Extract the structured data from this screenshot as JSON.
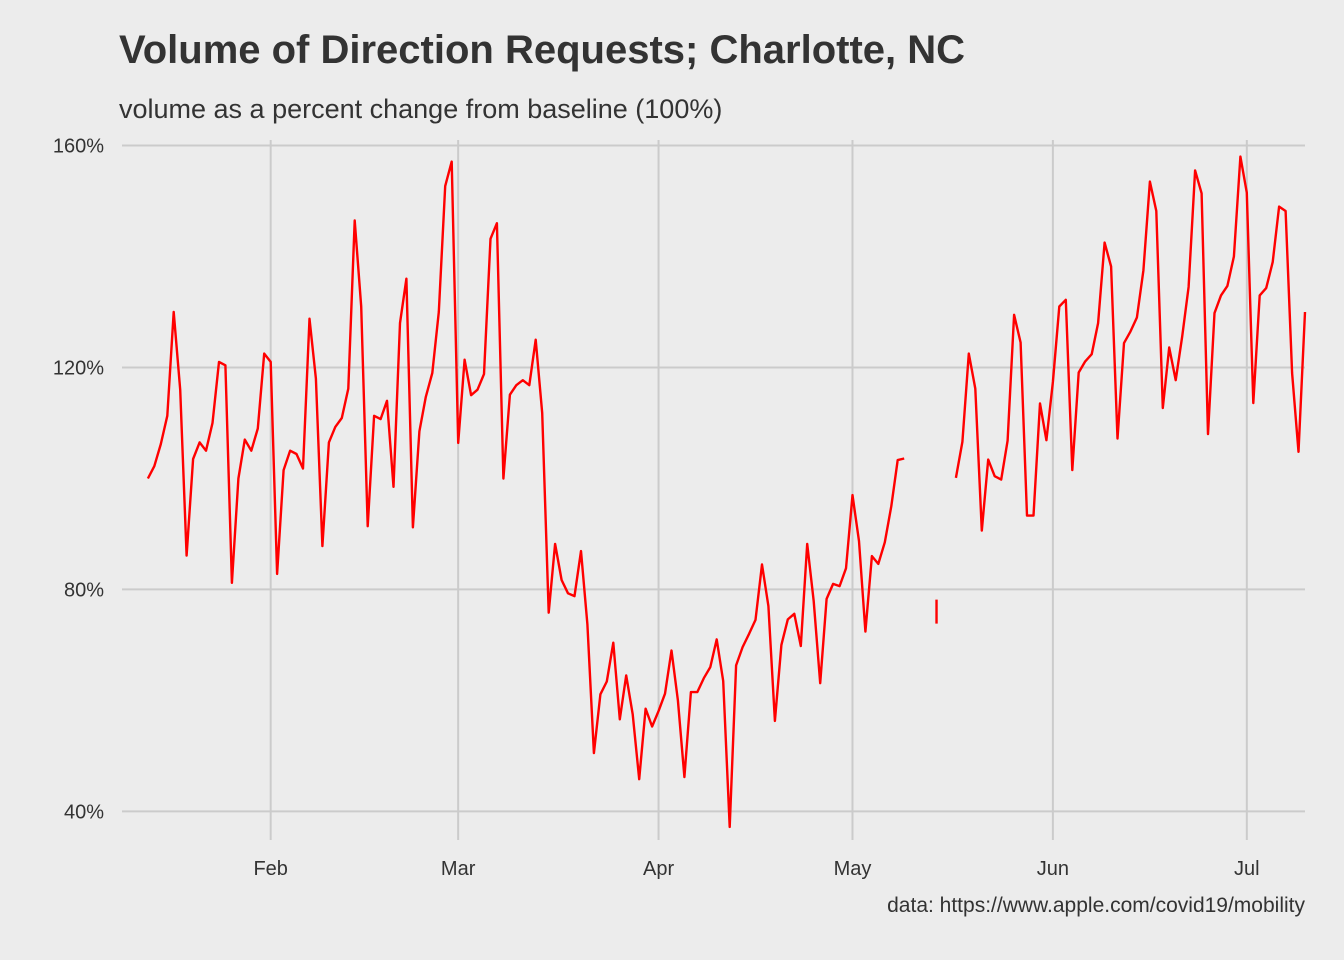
{
  "chart_data": {
    "type": "line",
    "title": "Volume of Direction Requests; Charlotte, NC",
    "subtitle": "volume as a percent change from baseline (100%)",
    "caption": "data: https://www.apple.com/covid19/mobility",
    "xlabel": "",
    "ylabel": "",
    "x_start_date": "2020-01-13",
    "x_tick_labels": [
      "Feb",
      "Mar",
      "Apr",
      "May",
      "Jun",
      "Jul"
    ],
    "x_tick_dates": [
      "2020-02-01",
      "2020-03-01",
      "2020-04-01",
      "2020-05-01",
      "2020-06-01",
      "2020-07-01"
    ],
    "xlim": [
      "2020-01-09",
      "2020-07-10"
    ],
    "y_tick_labels": [
      "40%",
      "80%",
      "120%",
      "160%"
    ],
    "y_tick_values": [
      40,
      80,
      120,
      160
    ],
    "ylim": [
      37,
      161
    ],
    "grid": true,
    "legend": "none",
    "line_color": "#ff0000",
    "series": [
      {
        "values": [
          100.0,
          102.2,
          106.2,
          111.3,
          130.0,
          116.0,
          86.1,
          103.5,
          106.5,
          105.0,
          110.0,
          121.0,
          120.4,
          81.2,
          100.0,
          107.0,
          105.0,
          109.0,
          122.5,
          121.0,
          82.8,
          101.5,
          105.0,
          104.4,
          101.8,
          128.8,
          118.0,
          87.8,
          106.5,
          109.3,
          110.9,
          116.2,
          146.5,
          131.0,
          91.4,
          111.3,
          110.7,
          114.0,
          98.5,
          128.0,
          136.0,
          91.2,
          108.5,
          114.7,
          119.0,
          130.0,
          152.7,
          157.1,
          106.4,
          121.4,
          115.0,
          116.0,
          118.8,
          143.2,
          146.0,
          100.0,
          115.1,
          116.8,
          117.7,
          116.8,
          125.0,
          111.8,
          75.8,
          88.2,
          81.7,
          79.3,
          78.8,
          86.9,
          73.7,
          50.5,
          61.1,
          63.4,
          70.4,
          56.6,
          64.5,
          57.5,
          45.8,
          58.5,
          55.3,
          58.1,
          61.2,
          69.0,
          60.0,
          46.2,
          61.5,
          61.5,
          64.0,
          66.0,
          71.0,
          63.5,
          37.2,
          66.3,
          69.6,
          72.0,
          74.5,
          84.5,
          77.0,
          56.3,
          70.0,
          74.6,
          75.6,
          69.8,
          88.2,
          77.9,
          63.1,
          78.3,
          81.0,
          80.6,
          83.8,
          97.0,
          88.7,
          72.4,
          86.0,
          84.6,
          88.5,
          95.0,
          103.3,
          103.6,
          null,
          null,
          null,
          null,
          76.0,
          null,
          null,
          100.1,
          106.6,
          122.5,
          116.2,
          90.6,
          103.4,
          100.4,
          99.8,
          106.8,
          129.5,
          124.5,
          93.3,
          93.3,
          113.5,
          106.9,
          117.4,
          131.0,
          132.2,
          101.5,
          119.1,
          121.1,
          122.4,
          128.0,
          142.5,
          138.2,
          107.2,
          124.4,
          126.5,
          129.0,
          137.5,
          153.5,
          148.2,
          112.7,
          123.6,
          117.7,
          125.6,
          134.5,
          155.5,
          151.4,
          108.0,
          129.8,
          133.0,
          134.7,
          140.0,
          158.0,
          151.5,
          113.6,
          133.0,
          134.3,
          139.0,
          149.0,
          148.2,
          119.0,
          104.8,
          130.0
        ]
      }
    ]
  }
}
